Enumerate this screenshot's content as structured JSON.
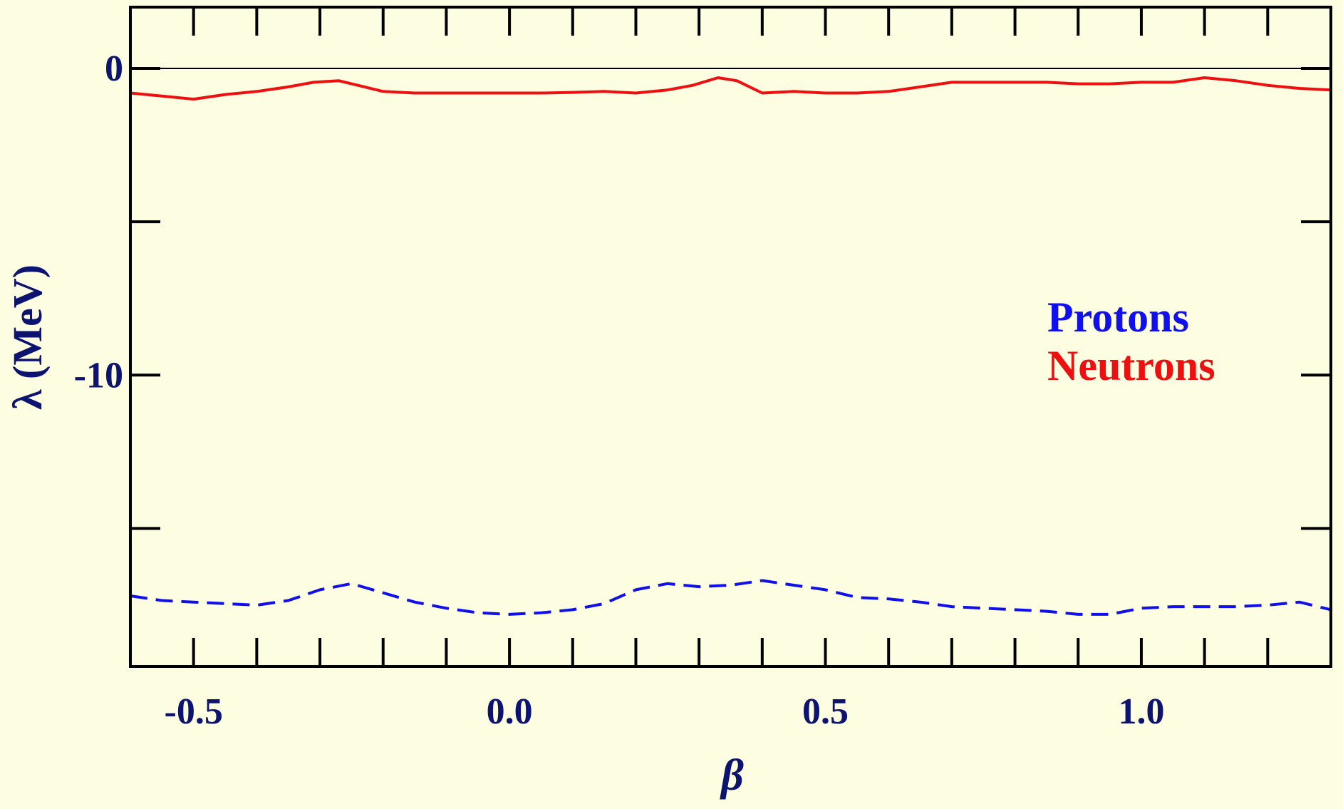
{
  "chart_data": {
    "type": "line",
    "xlabel": "β",
    "ylabel": "λ (MeV)",
    "xlim": [
      -0.6,
      1.3
    ],
    "ylim": [
      -19.5,
      2
    ],
    "x_ticks": [
      {
        "value": -0.5,
        "label": "-0.5"
      },
      {
        "value": 0.0,
        "label": "0.0"
      },
      {
        "value": 0.5,
        "label": "0.5"
      },
      {
        "value": 1.0,
        "label": "1.0"
      }
    ],
    "x_minor_ticks": [
      -0.4,
      -0.3,
      -0.2,
      -0.1,
      0.1,
      0.2,
      0.3,
      0.4,
      0.6,
      0.7,
      0.8,
      0.9,
      1.1,
      1.2
    ],
    "y_ticks": [
      {
        "value": 0,
        "label": "0"
      },
      {
        "value": -10,
        "label": "-10"
      }
    ],
    "y_minor_ticks": [
      -5,
      -15
    ],
    "zero_line": true,
    "grid": false,
    "legend_position": "right-middle",
    "legend": [
      {
        "label": "Protons",
        "color": "#1010ee"
      },
      {
        "label": "Neutrons",
        "color": "#ee1010"
      }
    ],
    "series": [
      {
        "name": "Neutrons",
        "color": "#ee1010",
        "style": "solid",
        "x": [
          -0.6,
          -0.55,
          -0.5,
          -0.45,
          -0.4,
          -0.35,
          -0.31,
          -0.27,
          -0.24,
          -0.2,
          -0.15,
          -0.1,
          -0.05,
          0.0,
          0.05,
          0.1,
          0.15,
          0.2,
          0.25,
          0.29,
          0.33,
          0.36,
          0.4,
          0.45,
          0.5,
          0.55,
          0.6,
          0.65,
          0.7,
          0.75,
          0.8,
          0.85,
          0.9,
          0.95,
          1.0,
          1.05,
          1.1,
          1.15,
          1.2,
          1.25,
          1.3
        ],
        "y": [
          -0.8,
          -0.9,
          -1.0,
          -0.85,
          -0.75,
          -0.6,
          -0.45,
          -0.4,
          -0.55,
          -0.75,
          -0.8,
          -0.8,
          -0.8,
          -0.8,
          -0.8,
          -0.78,
          -0.75,
          -0.8,
          -0.7,
          -0.55,
          -0.3,
          -0.4,
          -0.8,
          -0.75,
          -0.8,
          -0.8,
          -0.75,
          -0.6,
          -0.45,
          -0.45,
          -0.45,
          -0.45,
          -0.5,
          -0.5,
          -0.45,
          -0.45,
          -0.3,
          -0.4,
          -0.55,
          -0.65,
          -0.7
        ]
      },
      {
        "name": "Protons",
        "color": "#1010ee",
        "style": "dashed",
        "x": [
          -0.6,
          -0.55,
          -0.5,
          -0.45,
          -0.4,
          -0.35,
          -0.3,
          -0.25,
          -0.2,
          -0.15,
          -0.1,
          -0.05,
          0.0,
          0.05,
          0.1,
          0.15,
          0.2,
          0.25,
          0.3,
          0.35,
          0.4,
          0.45,
          0.5,
          0.55,
          0.6,
          0.65,
          0.7,
          0.75,
          0.8,
          0.85,
          0.9,
          0.95,
          1.0,
          1.05,
          1.1,
          1.15,
          1.2,
          1.25,
          1.3
        ],
        "y": [
          -17.2,
          -17.35,
          -17.4,
          -17.45,
          -17.5,
          -17.35,
          -17.0,
          -16.8,
          -17.1,
          -17.4,
          -17.6,
          -17.75,
          -17.8,
          -17.75,
          -17.65,
          -17.45,
          -17.0,
          -16.8,
          -16.9,
          -16.85,
          -16.7,
          -16.85,
          -17.0,
          -17.25,
          -17.3,
          -17.4,
          -17.55,
          -17.6,
          -17.65,
          -17.7,
          -17.8,
          -17.8,
          -17.6,
          -17.55,
          -17.55,
          -17.55,
          -17.5,
          -17.4,
          -17.65
        ]
      }
    ]
  }
}
